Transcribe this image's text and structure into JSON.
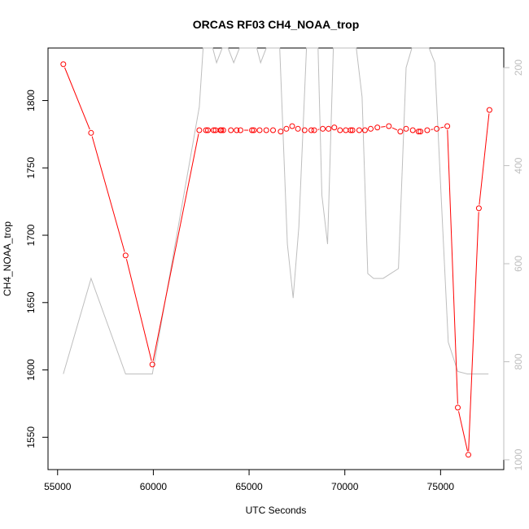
{
  "chart_data": {
    "type": "line",
    "title": "ORCAS RF03 CH4_NOAA_trop",
    "xlabel": "UTC Seconds",
    "ylabel": "CH4_NOAA_trop",
    "xlim": [
      54500,
      78300
    ],
    "ylim": [
      1526,
      1839
    ],
    "x_ticks": [
      55000,
      60000,
      65000,
      70000,
      75000
    ],
    "y_ticks": [
      1550,
      1600,
      1650,
      1700,
      1750,
      1800
    ],
    "y2_reversed": true,
    "y2lim": [
      1020,
      160
    ],
    "y2_ticks": [
      200,
      400,
      600,
      800,
      1000
    ],
    "grid": false,
    "series": [
      {
        "color": "#ff0000",
        "marker": "open-circle",
        "x": [
          55300,
          56750,
          58550,
          59950,
          62400,
          62750,
          62850,
          63150,
          63250,
          63500,
          63550,
          63650,
          64050,
          64350,
          64550,
          65150,
          65250,
          65550,
          65900,
          66250,
          66650,
          66950,
          67250,
          67550,
          67900,
          68250,
          68400,
          68850,
          69150,
          69450,
          69750,
          70050,
          70300,
          70400,
          70750,
          71050,
          71350,
          71700,
          72300,
          72900,
          73200,
          73550,
          73850,
          73950,
          74300,
          74800,
          75350,
          75900,
          76450,
          77000,
          77550
        ],
        "y": [
          1827,
          1776,
          1685,
          1604,
          1778,
          1778,
          1778,
          1778,
          1778,
          1778,
          1778,
          1778,
          1778,
          1778,
          1778,
          1778,
          1778,
          1778,
          1778,
          1778,
          1777,
          1779,
          1781,
          1779,
          1778,
          1778,
          1778,
          1779,
          1779,
          1780,
          1778,
          1778,
          1778,
          1778,
          1778,
          1778,
          1779,
          1780,
          1781,
          1777,
          1779,
          1778,
          1777,
          1777,
          1778,
          1779,
          1781,
          1572,
          1537,
          1720,
          1793
        ]
      },
      {
        "axis": "right",
        "color": "#bebebe",
        "marker": "none",
        "x": [
          55300,
          56750,
          58550,
          59950,
          62400,
          62600,
          62800,
          63100,
          63300,
          63600,
          63900,
          64200,
          64500,
          64800,
          65100,
          65400,
          65600,
          65900,
          66200,
          66600,
          67000,
          67300,
          67600,
          68000,
          68300,
          68600,
          68800,
          69100,
          69400,
          69700,
          70000,
          70300,
          70600,
          70900,
          71200,
          71500,
          72000,
          72800,
          73200,
          73500,
          73800,
          74100,
          74400,
          74700,
          75000,
          75400,
          75900,
          76400,
          77000,
          77500
        ],
        "y": [
          825,
          630,
          825,
          825,
          280,
          60,
          60,
          60,
          190,
          60,
          60,
          190,
          60,
          60,
          60,
          60,
          190,
          60,
          60,
          60,
          560,
          670,
          525,
          150,
          60,
          150,
          460,
          560,
          150,
          60,
          60,
          60,
          150,
          260,
          620,
          630,
          630,
          610,
          200,
          60,
          60,
          60,
          60,
          190,
          440,
          760,
          820,
          825,
          825,
          825
        ]
      }
    ]
  }
}
